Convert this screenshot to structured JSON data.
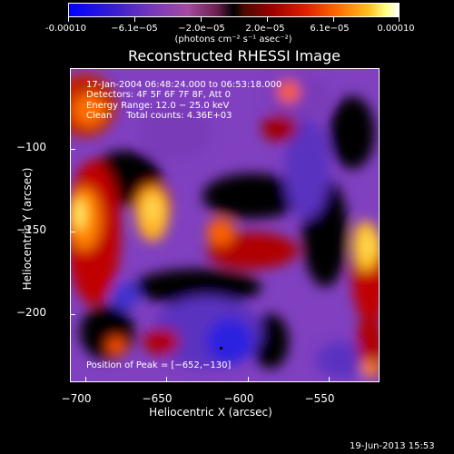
{
  "colorbar": {
    "ticks": [
      "-0.00010",
      "−6.1e−05",
      "−2.0e−05",
      "2.0e−05",
      "6.1e−05",
      "0.00010"
    ],
    "units": "(photons cm⁻² s⁻¹ asec⁻²)"
  },
  "title": "Reconstructed RHESSI Image",
  "info": {
    "time": "17-Jan-2004 06:48:24.000 to 06:53:18.000",
    "detectors": "Detectors: 4F 5F 6F 7F 8F, Att 0",
    "energy": "Energy Range: 12.0 − 25.0 keV",
    "clean": "Clean     Total counts: 4.36E+03"
  },
  "peak": "Position of Peak = [−652,−130]",
  "axes": {
    "xlabel": "Heliocentric X (arcsec)",
    "ylabel": "Heliocentric Y (arcsec)",
    "xticks": [
      "−700",
      "−650",
      "−600",
      "−550"
    ],
    "yticks": [
      "−100",
      "−150",
      "−200"
    ]
  },
  "timestamp": "19-Jun-2013 15:53"
}
